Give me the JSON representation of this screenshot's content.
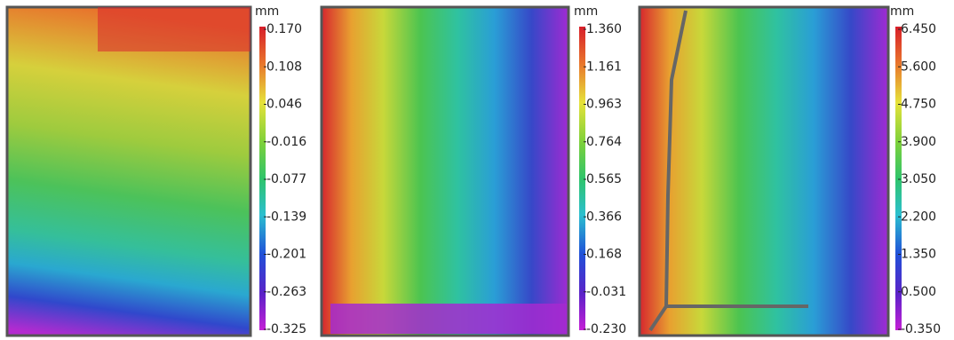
{
  "panels": [
    {
      "unit": "mm",
      "ticks": [
        "0.170",
        "0.108",
        "0.046",
        "-0.016",
        "-0.077",
        "-0.139",
        "-0.201",
        "-0.263",
        "-0.325"
      ]
    },
    {
      "unit": "mm",
      "ticks": [
        "1.360",
        "1.161",
        "0.963",
        "0.764",
        "0.565",
        "0.366",
        "0.168",
        "-0.031",
        "-0.230"
      ]
    },
    {
      "unit": "mm",
      "ticks": [
        "6.450",
        "5.600",
        "4.750",
        "3.900",
        "3.050",
        "2.200",
        "1.350",
        "0.500",
        "-0.350"
      ]
    }
  ]
}
